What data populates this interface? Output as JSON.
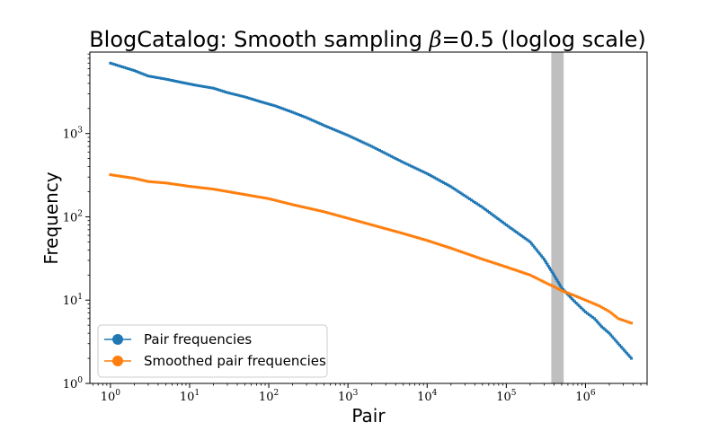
{
  "chart_data": {
    "type": "scatter",
    "scale": "loglog",
    "title": {
      "prefix": "BlogCatalog: Smooth sampling ",
      "symbol": "β",
      "suffix": "=0.5 (loglog scale)"
    },
    "xlabel": "Pair",
    "ylabel": "Frequency",
    "xlim": [
      0.55,
      6000000
    ],
    "ylim": [
      1,
      9500
    ],
    "x_ticks": [
      {
        "base": "10",
        "exp": "0",
        "value": 1
      },
      {
        "base": "10",
        "exp": "1",
        "value": 10
      },
      {
        "base": "10",
        "exp": "2",
        "value": 100
      },
      {
        "base": "10",
        "exp": "3",
        "value": 1000
      },
      {
        "base": "10",
        "exp": "4",
        "value": 10000
      },
      {
        "base": "10",
        "exp": "5",
        "value": 100000
      },
      {
        "base": "10",
        "exp": "6",
        "value": 1000000
      }
    ],
    "y_ticks": [
      {
        "base": "10",
        "exp": "0",
        "value": 1
      },
      {
        "base": "10",
        "exp": "1",
        "value": 10
      },
      {
        "base": "10",
        "exp": "2",
        "value": 100
      },
      {
        "base": "10",
        "exp": "3",
        "value": 1000
      }
    ],
    "shaded_band": {
      "x_start": 370000,
      "x_end": 530000,
      "color": "#bfbfbf"
    },
    "legend_position": "lower-left",
    "series": [
      {
        "name": "Pair frequencies",
        "color": "#1f77b4",
        "points": [
          [
            1,
            7000
          ],
          [
            2,
            5700
          ],
          [
            3,
            4900
          ],
          [
            5,
            4500
          ],
          [
            8,
            4100
          ],
          [
            12,
            3800
          ],
          [
            20,
            3500
          ],
          [
            30,
            3100
          ],
          [
            50,
            2750
          ],
          [
            80,
            2400
          ],
          [
            120,
            2150
          ],
          [
            200,
            1800
          ],
          [
            300,
            1550
          ],
          [
            500,
            1250
          ],
          [
            1000,
            950
          ],
          [
            2000,
            700
          ],
          [
            5000,
            450
          ],
          [
            10000,
            330
          ],
          [
            20000,
            230
          ],
          [
            50000,
            130
          ],
          [
            100000,
            80
          ],
          [
            200000,
            50
          ],
          [
            300000,
            31
          ],
          [
            400000,
            20
          ],
          [
            500000,
            14
          ],
          [
            700000,
            10
          ],
          [
            1000000,
            7.2
          ],
          [
            1300000,
            6
          ],
          [
            1600000,
            4.8
          ],
          [
            2000000,
            4
          ],
          [
            2600000,
            3
          ],
          [
            3800000,
            2
          ]
        ]
      },
      {
        "name": "Smoothed pair frequencies",
        "color": "#ff7f0e",
        "points": [
          [
            1,
            320
          ],
          [
            2,
            290
          ],
          [
            3,
            265
          ],
          [
            5,
            255
          ],
          [
            10,
            232
          ],
          [
            20,
            215
          ],
          [
            50,
            185
          ],
          [
            100,
            165
          ],
          [
            200,
            140
          ],
          [
            500,
            115
          ],
          [
            1000,
            96
          ],
          [
            2000,
            80
          ],
          [
            5000,
            63
          ],
          [
            10000,
            52
          ],
          [
            20000,
            42
          ],
          [
            50000,
            31
          ],
          [
            100000,
            25
          ],
          [
            200000,
            20
          ],
          [
            300000,
            16.5
          ],
          [
            400000,
            14.5
          ],
          [
            500000,
            13
          ],
          [
            700000,
            11.5
          ],
          [
            1000000,
            10
          ],
          [
            1500000,
            8.5
          ],
          [
            2000000,
            7.3
          ],
          [
            2600000,
            6
          ],
          [
            3800000,
            5.3
          ]
        ]
      }
    ]
  }
}
